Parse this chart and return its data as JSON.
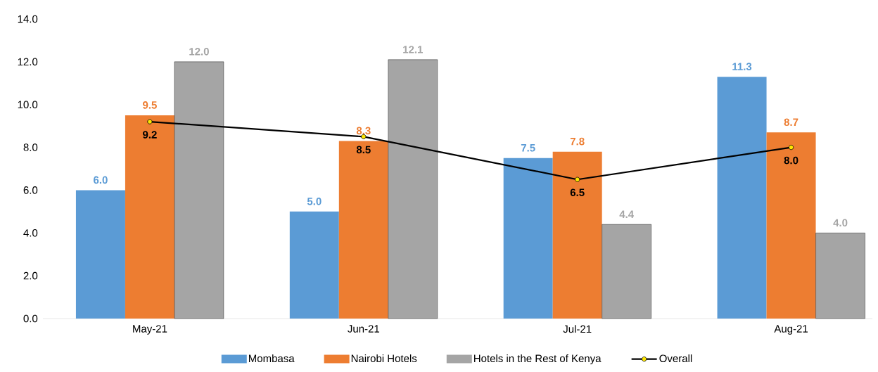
{
  "chart_data": {
    "type": "bar",
    "categories": [
      "May-21",
      "Jun-21",
      "Jul-21",
      "Aug-21"
    ],
    "series": [
      {
        "name": "Mombasa",
        "color": "#5b9bd5",
        "values": [
          6.0,
          5.0,
          7.5,
          11.3
        ],
        "value_labels": [
          "6.0",
          "5.0",
          "7.5",
          "11.3"
        ]
      },
      {
        "name": "Nairobi Hotels",
        "color": "#ed7d31",
        "values": [
          9.5,
          8.3,
          7.8,
          8.7
        ],
        "value_labels": [
          "9.5",
          "8.3",
          "7.8",
          "8.7"
        ]
      },
      {
        "name": "Hotels in the Rest of Kenya",
        "color": "#a5a5a5",
        "values": [
          12.0,
          12.1,
          4.4,
          4.0
        ],
        "value_labels": [
          "12.0",
          "12.1",
          "4.4",
          "4.0"
        ]
      },
      {
        "name": "Overall",
        "type": "line",
        "color": "#000000",
        "marker": "circle",
        "values": [
          9.2,
          8.5,
          6.5,
          8.0
        ],
        "value_labels": [
          "9.2",
          "8.5",
          "6.5",
          "8.0"
        ]
      }
    ],
    "ylim": [
      0,
      14
    ],
    "yticks": [
      {
        "value": 0,
        "label": "0.0"
      },
      {
        "value": 2,
        "label": "2.0"
      },
      {
        "value": 4,
        "label": "4.0"
      },
      {
        "value": 6,
        "label": "6.0"
      },
      {
        "value": 8,
        "label": "8.0"
      },
      {
        "value": 10,
        "label": "10.0"
      },
      {
        "value": 12,
        "label": "12.0"
      },
      {
        "value": 14,
        "label": "14.0"
      }
    ],
    "grid": false,
    "legend": "bottom"
  }
}
